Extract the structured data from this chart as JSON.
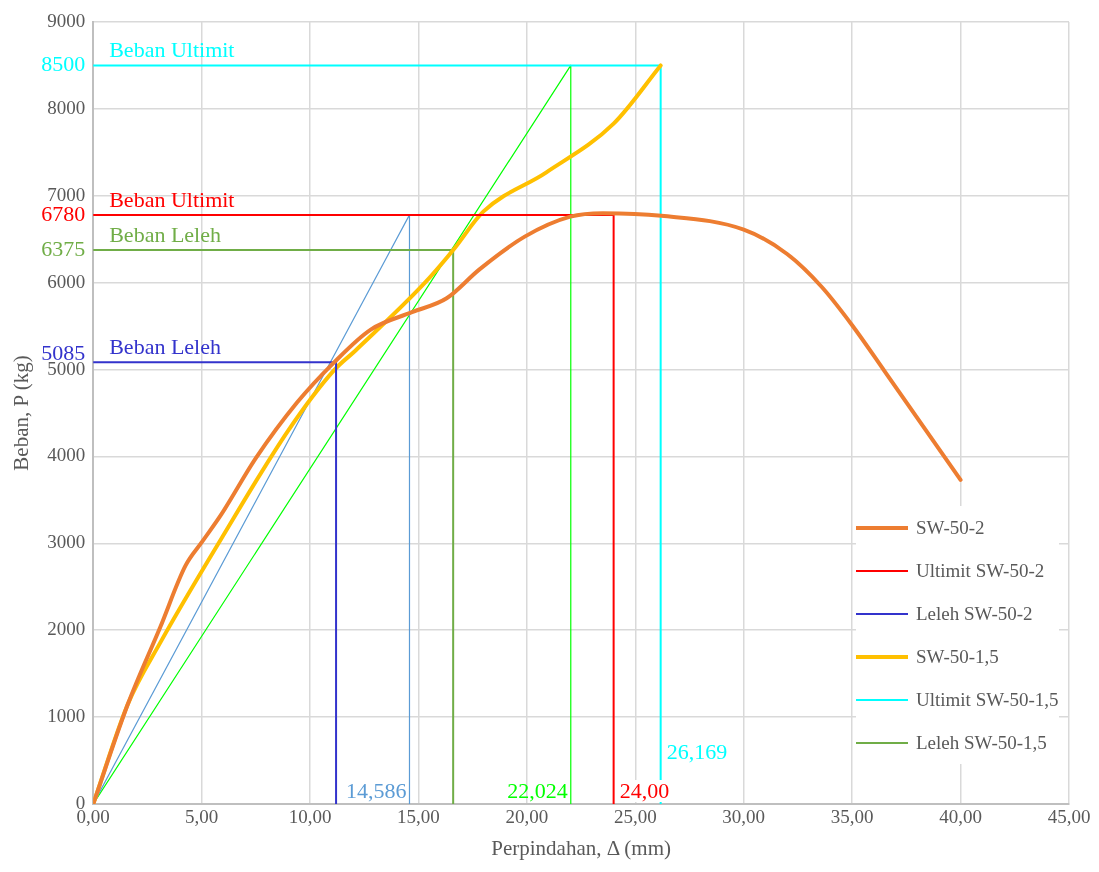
{
  "chart_data": {
    "type": "line",
    "xlabel": "Perpindahan, Δ (mm)",
    "ylabel": "Beban, P (kg)",
    "xlim": [
      0,
      45
    ],
    "xticks": [
      {
        "value": 0,
        "label": "0,00"
      },
      {
        "value": 5,
        "label": "5,00"
      },
      {
        "value": 10,
        "label": "10,00"
      },
      {
        "value": 15,
        "label": "15,00"
      },
      {
        "value": 20,
        "label": "20,00"
      },
      {
        "value": 25,
        "label": "25,00"
      },
      {
        "value": 30,
        "label": "30,00"
      },
      {
        "value": 35,
        "label": "35,00"
      },
      {
        "value": 40,
        "label": "40,00"
      },
      {
        "value": 45,
        "label": "45,00"
      }
    ],
    "ylim": [
      0,
      9000
    ],
    "yticks": [
      0,
      1000,
      2000,
      3000,
      4000,
      5000,
      5085,
      6000,
      6375,
      6780,
      7000,
      8000,
      8500,
      9000
    ],
    "grid": true,
    "legend": "bottom right",
    "marker": "none",
    "line_style": "solid",
    "series": [
      {
        "name": "SW-50-2",
        "color": "#ed7d31",
        "x": [
          0,
          1.6,
          3.1,
          4.25,
          5.0,
          5.9,
          7.5,
          9.4,
          11.1,
          12.8,
          14.7,
          16.3,
          17.8,
          19.9,
          22.0,
          23.5,
          26.2,
          30.0,
          32.0,
          33.6,
          35.0,
          36.5,
          40.0
        ],
        "values": [
          0,
          1150,
          2040,
          2740,
          3010,
          3330,
          3980,
          4620,
          5080,
          5460,
          5660,
          5820,
          6150,
          6530,
          6760,
          6800,
          6770,
          6610,
          6330,
          5950,
          5510,
          4980,
          3730
        ]
      },
      {
        "name": "Ultimit SW-50-2",
        "color": "#ff0000",
        "x": [
          0,
          24,
          24
        ],
        "values": [
          6780,
          6780,
          0
        ]
      },
      {
        "name": "Leleh SW-50-2",
        "color": "#3333cc",
        "x": [
          0,
          11.2,
          11.2
        ],
        "values": [
          5085,
          5085,
          0
        ]
      },
      {
        "name": "SW-50-1,5",
        "color": "#ffc000",
        "x": [
          0,
          1.6,
          3.1,
          5.9,
          9.0,
          11.1,
          12.1,
          15.3,
          16.6,
          18.0,
          20.9,
          24.0,
          26.169
        ],
        "values": [
          0,
          1150,
          1860,
          3050,
          4300,
          4990,
          5220,
          6000,
          6375,
          6820,
          7270,
          7830,
          8500
        ]
      },
      {
        "name": "Ultimit SW-50-1,5",
        "color": "#00ffff",
        "x": [
          0,
          26.169,
          26.169
        ],
        "values": [
          8500,
          8500,
          0
        ]
      },
      {
        "name": "Leleh SW-50-1,5",
        "color": "#70ad47",
        "x": [
          0,
          16.6,
          16.6
        ],
        "values": [
          6375,
          6375,
          0
        ]
      },
      {
        "color": "#5b9bd5",
        "x": [
          0,
          14.586,
          14.586
        ],
        "values": [
          0,
          6780,
          0
        ]
      },
      {
        "color": "#00ff00",
        "x": [
          0,
          22.024,
          22.024
        ],
        "values": [
          0,
          8500,
          0
        ]
      }
    ],
    "annotations": [
      {
        "text": "Beban Ultimit",
        "x": 0,
        "y": 8500
      },
      {
        "text": "Beban Ultimit",
        "x": 0,
        "y": 6780
      },
      {
        "text": "Beban Leleh",
        "x": 0,
        "y": 6375
      },
      {
        "text": "Beban Leleh",
        "x": 0,
        "y": 5085
      },
      {
        "text": "14,586",
        "x": 14.586,
        "y": 0
      },
      {
        "text": "22,024",
        "x": 22.024,
        "y": 0
      },
      {
        "text": "24,00",
        "x": 24,
        "y": 0
      },
      {
        "text": "26,169",
        "x": 26.169,
        "y": 450
      }
    ]
  }
}
